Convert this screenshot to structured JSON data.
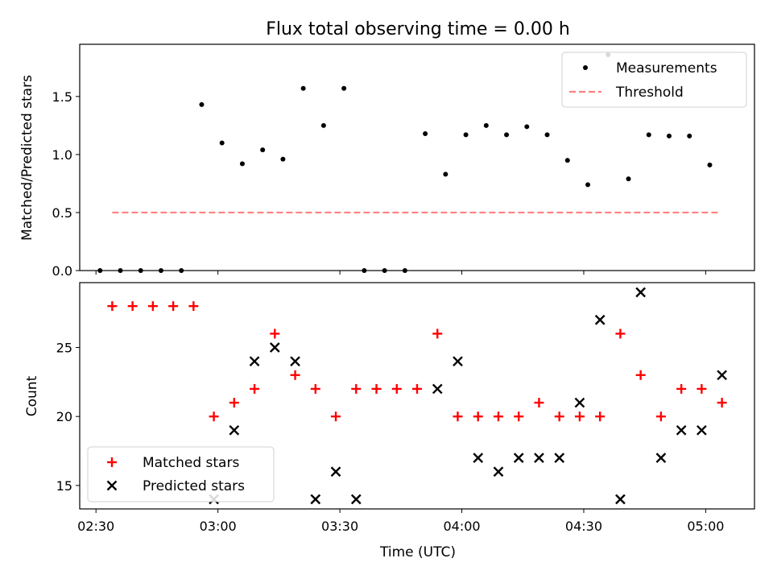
{
  "chart_data": [
    {
      "type": "scatter",
      "title": "Flux total observing time = 0.00 h",
      "xlabel": "",
      "ylabel": "Matched/Predicted stars",
      "ylim": [
        0,
        1.95
      ],
      "yticks": [
        {
          "value": 0.0,
          "label": "0.0"
        },
        {
          "value": 0.5,
          "label": "0.5"
        },
        {
          "value": 1.0,
          "label": "1.0"
        },
        {
          "value": 1.5,
          "label": "1.5"
        }
      ],
      "legend_position": "top-right",
      "series": [
        {
          "name": "Measurements",
          "kind": "points",
          "color": "#000000",
          "x": [
            "02:31",
            "02:36",
            "02:41",
            "02:46",
            "02:51",
            "02:56",
            "03:01",
            "03:06",
            "03:11",
            "03:16",
            "03:21",
            "03:26",
            "03:31",
            "03:36",
            "03:41",
            "03:46",
            "03:51",
            "03:56",
            "04:01",
            "04:06",
            "04:11",
            "04:16",
            "04:21",
            "04:26",
            "04:31",
            "04:36",
            "04:41",
            "04:46",
            "04:51",
            "04:56",
            "05:01"
          ],
          "y": [
            0,
            0,
            0,
            0,
            0,
            1.43,
            1.1,
            0.92,
            1.04,
            0.96,
            1.57,
            1.25,
            1.57,
            0,
            0,
            0,
            1.18,
            0.83,
            1.17,
            1.25,
            1.17,
            1.24,
            1.17,
            0.95,
            0.74,
            1.86,
            0.79,
            1.17,
            1.16,
            1.16,
            0.91
          ]
        },
        {
          "name": "Threshold",
          "kind": "dashed-line",
          "color": "#ff8080",
          "x": [
            "02:34",
            "05:03"
          ],
          "y": [
            0.5,
            0.5
          ]
        }
      ]
    },
    {
      "type": "scatter",
      "xlabel": "Time (UTC)",
      "ylabel": "Count",
      "ylim": [
        13.3,
        29.7
      ],
      "xlim": [
        "02:26",
        "05:12"
      ],
      "xticks": [
        "02:30",
        "03:00",
        "03:30",
        "04:00",
        "04:30",
        "05:00"
      ],
      "yticks": [
        {
          "value": 15,
          "label": "15"
        },
        {
          "value": 20,
          "label": "20"
        },
        {
          "value": 25,
          "label": "25"
        }
      ],
      "legend_position": "bottom-left",
      "series": [
        {
          "name": "Matched stars",
          "marker": "plus",
          "color": "#ff0000",
          "x": [
            "02:34",
            "02:39",
            "02:44",
            "02:49",
            "02:54",
            "02:59",
            "03:04",
            "03:09",
            "03:14",
            "03:19",
            "03:24",
            "03:29",
            "03:34",
            "03:39",
            "03:44",
            "03:49",
            "03:54",
            "03:59",
            "04:04",
            "04:09",
            "04:14",
            "04:19",
            "04:24",
            "04:29",
            "04:34",
            "04:39",
            "04:44",
            "04:49",
            "04:54",
            "04:59",
            "05:04"
          ],
          "y": [
            28,
            28,
            28,
            28,
            28,
            20,
            21,
            22,
            26,
            23,
            22,
            20,
            22,
            22,
            22,
            22,
            26,
            20,
            20,
            20,
            20,
            21,
            20,
            20,
            20,
            26,
            23,
            20,
            22,
            22,
            21
          ]
        },
        {
          "name": "Predicted stars",
          "marker": "x",
          "color": "#000000",
          "x": [
            "02:59",
            "03:04",
            "03:09",
            "03:14",
            "03:19",
            "03:24",
            "03:29",
            "03:34",
            "03:54",
            "03:59",
            "04:04",
            "04:09",
            "04:14",
            "04:19",
            "04:24",
            "04:29",
            "04:34",
            "04:39",
            "04:44",
            "04:49",
            "04:54",
            "04:59",
            "05:04"
          ],
          "y": [
            14,
            19,
            24,
            25,
            24,
            14,
            16,
            14,
            22,
            24,
            17,
            16,
            17,
            17,
            17,
            21,
            27,
            14,
            29,
            17,
            19,
            19,
            23
          ]
        }
      ]
    }
  ]
}
